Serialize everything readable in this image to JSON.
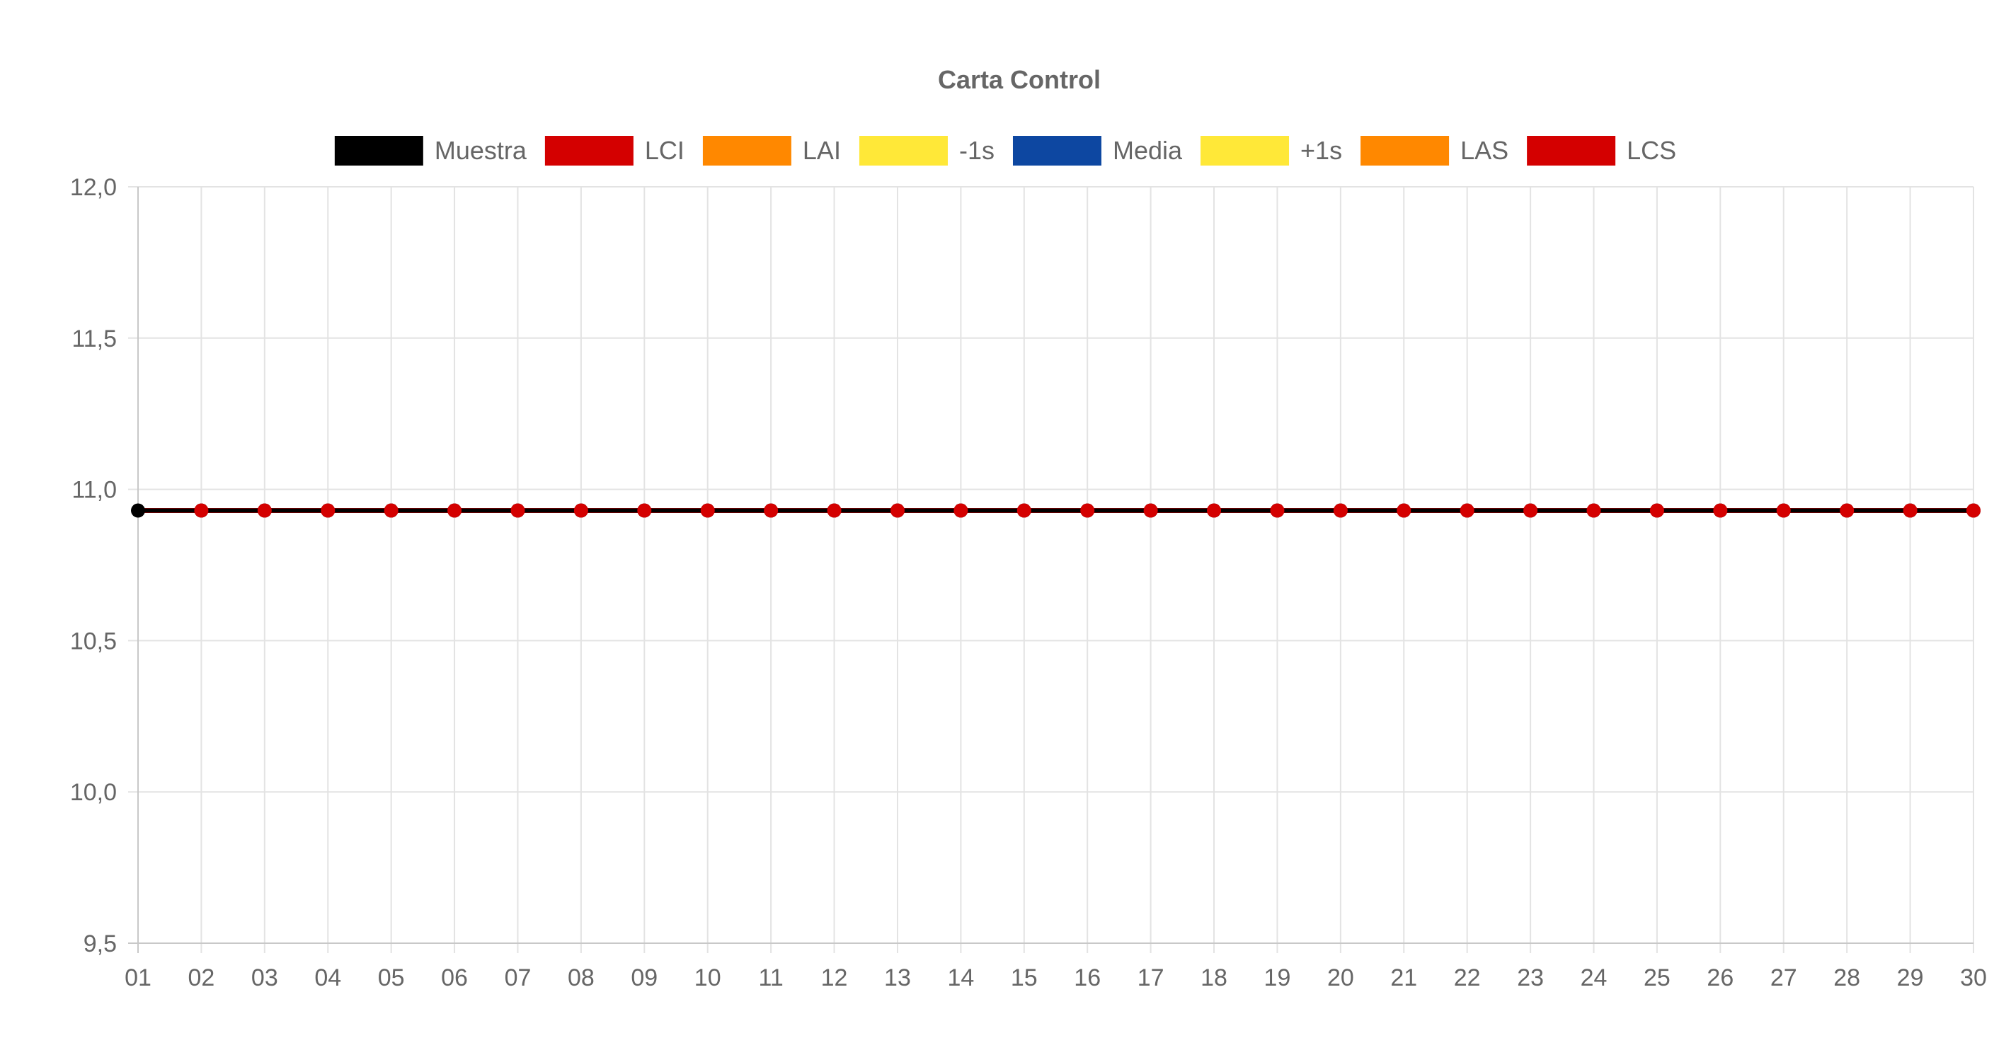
{
  "chart_data": {
    "type": "line",
    "title": "Carta Control",
    "xlabel": "",
    "ylabel": "",
    "x": [
      "01",
      "02",
      "03",
      "04",
      "05",
      "06",
      "07",
      "08",
      "09",
      "10",
      "11",
      "12",
      "13",
      "14",
      "15",
      "16",
      "17",
      "18",
      "19",
      "20",
      "21",
      "22",
      "23",
      "24",
      "25",
      "26",
      "27",
      "28",
      "29",
      "30"
    ],
    "ylim": [
      9.5,
      12.0
    ],
    "yticks": [
      {
        "value": 12.0,
        "label": "12,0"
      },
      {
        "value": 11.5,
        "label": "11,5"
      },
      {
        "value": 11.0,
        "label": "11,0"
      },
      {
        "value": 10.5,
        "label": "10,5"
      },
      {
        "value": 10.0,
        "label": "10,0"
      },
      {
        "value": 9.5,
        "label": "9,5"
      }
    ],
    "grid": true,
    "legend_position": "top",
    "series": [
      {
        "name": "Muestra",
        "color": "#000000",
        "values": [
          10.93,
          10.93,
          10.93,
          10.93,
          10.93,
          10.93,
          10.93,
          10.93,
          10.93,
          10.93,
          10.93,
          10.93,
          10.93,
          10.93,
          10.93,
          10.93,
          10.93,
          10.93,
          10.93,
          10.93,
          10.93,
          10.93,
          10.93,
          10.93,
          10.93,
          10.93,
          10.93,
          10.93,
          10.93,
          10.93
        ]
      },
      {
        "name": "LCI",
        "color": "#d40000",
        "values": [
          10.93,
          10.93,
          10.93,
          10.93,
          10.93,
          10.93,
          10.93,
          10.93,
          10.93,
          10.93,
          10.93,
          10.93,
          10.93,
          10.93,
          10.93,
          10.93,
          10.93,
          10.93,
          10.93,
          10.93,
          10.93,
          10.93,
          10.93,
          10.93,
          10.93,
          10.93,
          10.93,
          10.93,
          10.93,
          10.93
        ]
      },
      {
        "name": "LAI",
        "color": "#ff8800",
        "values": [
          10.93,
          10.93,
          10.93,
          10.93,
          10.93,
          10.93,
          10.93,
          10.93,
          10.93,
          10.93,
          10.93,
          10.93,
          10.93,
          10.93,
          10.93,
          10.93,
          10.93,
          10.93,
          10.93,
          10.93,
          10.93,
          10.93,
          10.93,
          10.93,
          10.93,
          10.93,
          10.93,
          10.93,
          10.93,
          10.93
        ]
      },
      {
        "name": "-1s",
        "color": "#ffe838",
        "values": [
          10.93,
          10.93,
          10.93,
          10.93,
          10.93,
          10.93,
          10.93,
          10.93,
          10.93,
          10.93,
          10.93,
          10.93,
          10.93,
          10.93,
          10.93,
          10.93,
          10.93,
          10.93,
          10.93,
          10.93,
          10.93,
          10.93,
          10.93,
          10.93,
          10.93,
          10.93,
          10.93,
          10.93,
          10.93,
          10.93
        ]
      },
      {
        "name": "Media",
        "color": "#0d47a1",
        "values": [
          10.93,
          10.93,
          10.93,
          10.93,
          10.93,
          10.93,
          10.93,
          10.93,
          10.93,
          10.93,
          10.93,
          10.93,
          10.93,
          10.93,
          10.93,
          10.93,
          10.93,
          10.93,
          10.93,
          10.93,
          10.93,
          10.93,
          10.93,
          10.93,
          10.93,
          10.93,
          10.93,
          10.93,
          10.93,
          10.93
        ]
      },
      {
        "name": "+1s",
        "color": "#ffe838",
        "values": [
          10.93,
          10.93,
          10.93,
          10.93,
          10.93,
          10.93,
          10.93,
          10.93,
          10.93,
          10.93,
          10.93,
          10.93,
          10.93,
          10.93,
          10.93,
          10.93,
          10.93,
          10.93,
          10.93,
          10.93,
          10.93,
          10.93,
          10.93,
          10.93,
          10.93,
          10.93,
          10.93,
          10.93,
          10.93,
          10.93
        ]
      },
      {
        "name": "LAS",
        "color": "#ff8800",
        "values": [
          10.93,
          10.93,
          10.93,
          10.93,
          10.93,
          10.93,
          10.93,
          10.93,
          10.93,
          10.93,
          10.93,
          10.93,
          10.93,
          10.93,
          10.93,
          10.93,
          10.93,
          10.93,
          10.93,
          10.93,
          10.93,
          10.93,
          10.93,
          10.93,
          10.93,
          10.93,
          10.93,
          10.93,
          10.93,
          10.93
        ]
      },
      {
        "name": "LCS",
        "color": "#d40000",
        "values": [
          10.93,
          10.93,
          10.93,
          10.93,
          10.93,
          10.93,
          10.93,
          10.93,
          10.93,
          10.93,
          10.93,
          10.93,
          10.93,
          10.93,
          10.93,
          10.93,
          10.93,
          10.93,
          10.93,
          10.93,
          10.93,
          10.93,
          10.93,
          10.93,
          10.93,
          10.93,
          10.93,
          10.93,
          10.93,
          10.93
        ]
      }
    ]
  }
}
